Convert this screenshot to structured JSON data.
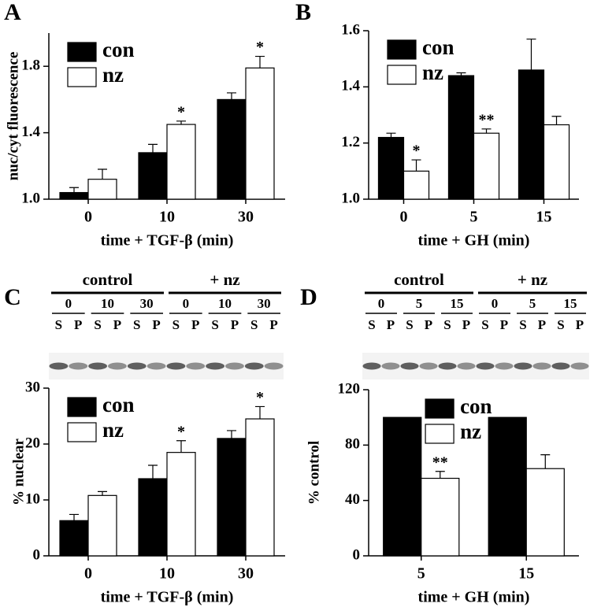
{
  "chart_data": [
    {
      "type": "bar",
      "panel": "A",
      "xlabel": "time + TGF-β (min)",
      "ylabel": "nuc/cyt fluorescence",
      "categories": [
        "0",
        "10",
        "30"
      ],
      "series": [
        {
          "name": "con",
          "color": "#000000",
          "values": [
            1.04,
            1.28,
            1.6
          ],
          "errors": [
            0.03,
            0.05,
            0.04
          ]
        },
        {
          "name": "nz",
          "color": "#ffffff",
          "values": [
            1.12,
            1.45,
            1.79
          ],
          "errors": [
            0.06,
            0.02,
            0.07
          ],
          "significance": [
            null,
            "*",
            "*"
          ]
        }
      ],
      "ylim": [
        1.0,
        2.0
      ],
      "yticks": [
        {
          "value": 1.0,
          "label": "1.0"
        },
        1.4,
        1.8
      ],
      "legend": "upper left"
    },
    {
      "type": "bar",
      "panel": "B",
      "xlabel": "time + GH (min)",
      "categories": [
        "0",
        "5",
        "15"
      ],
      "series": [
        {
          "name": "con",
          "color": "#000000",
          "values": [
            1.22,
            1.44,
            1.46
          ],
          "errors": [
            0.015,
            0.01,
            0.11
          ]
        },
        {
          "name": "nz",
          "color": "#ffffff",
          "values": [
            1.1,
            1.235,
            1.265
          ],
          "errors": [
            0.04,
            0.015,
            0.03
          ],
          "significance": [
            "*",
            "**",
            null
          ]
        }
      ],
      "ylim": [
        1.0,
        1.6
      ],
      "yticks": [
        {
          "value": 1.0,
          "label": "1.0"
        },
        1.2,
        1.4,
        1.6
      ],
      "legend": "upper left"
    },
    {
      "type": "bar",
      "panel": "C",
      "xlabel": "time + TGF-β (min)",
      "ylabel": "% nuclear",
      "blot": {
        "groups": [
          "control",
          "+ nz"
        ],
        "times": [
          "0",
          "10",
          "30"
        ],
        "fractions": [
          "S",
          "P"
        ]
      },
      "categories": [
        "0",
        "10",
        "30"
      ],
      "series": [
        {
          "name": "con",
          "color": "#000000",
          "values": [
            6.3,
            13.8,
            21.0
          ],
          "errors": [
            1.1,
            2.4,
            1.4
          ]
        },
        {
          "name": "nz",
          "color": "#ffffff",
          "values": [
            10.8,
            18.5,
            24.5
          ],
          "errors": [
            0.7,
            2.1,
            2.2
          ],
          "significance": [
            null,
            "*",
            "*"
          ]
        }
      ],
      "ylim": [
        0,
        30
      ],
      "yticks": [
        0,
        10,
        20,
        30
      ],
      "legend": "upper left"
    },
    {
      "type": "bar",
      "panel": "D",
      "xlabel": "time + GH (min)",
      "ylabel": "% control",
      "blot": {
        "groups": [
          "control",
          "+ nz"
        ],
        "times": [
          "0",
          "5",
          "15"
        ],
        "fractions": [
          "S",
          "P"
        ]
      },
      "categories": [
        "5",
        "15"
      ],
      "series": [
        {
          "name": "con",
          "color": "#000000",
          "values": [
            100,
            100
          ]
        },
        {
          "name": "nz",
          "color": "#ffffff",
          "values": [
            56,
            63
          ],
          "errors": [
            5,
            10
          ],
          "significance": [
            "**",
            null
          ]
        }
      ],
      "ylim": [
        0,
        120
      ],
      "yticks": [
        0,
        40,
        80,
        120
      ],
      "legend": "upper center"
    }
  ]
}
